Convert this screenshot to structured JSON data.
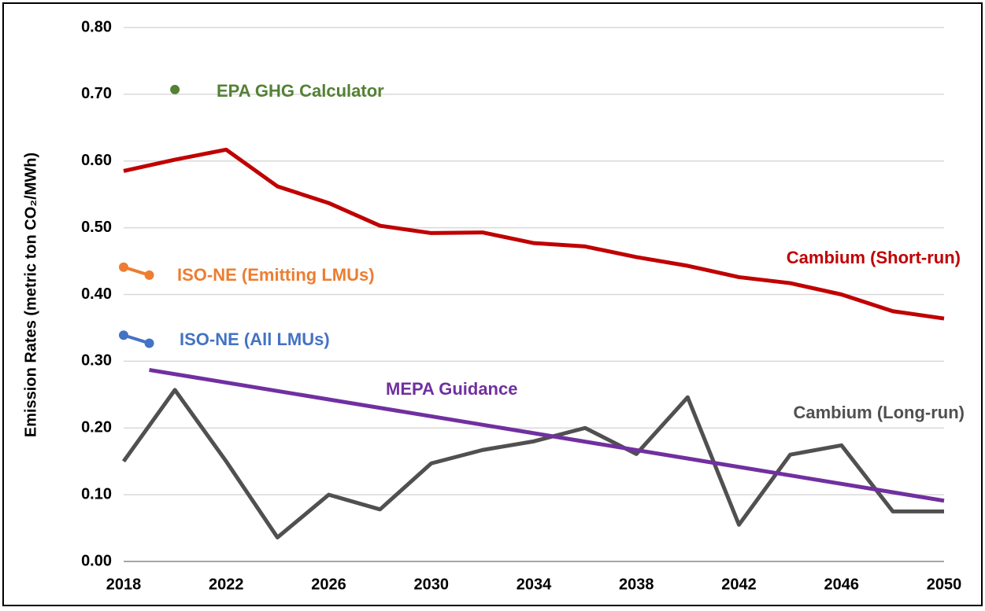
{
  "chart_data": {
    "type": "line",
    "ylabel": "Emission Rates (metric ton CO₂/MWh)",
    "xlim": [
      2018,
      2050
    ],
    "xticks": [
      2018,
      2022,
      2026,
      2030,
      2034,
      2038,
      2042,
      2046,
      2050
    ],
    "ylim": [
      0,
      0.8
    ],
    "yticks": [
      {
        "value": 0,
        "label": "0.00"
      },
      {
        "value": 0.1,
        "label": "0.10"
      },
      {
        "value": 0.2,
        "label": "0.20"
      },
      {
        "value": 0.3,
        "label": "0.30"
      },
      {
        "value": 0.4,
        "label": "0.40"
      },
      {
        "value": 0.5,
        "label": "0.50"
      },
      {
        "value": 0.6,
        "label": "0.60"
      },
      {
        "value": 0.7,
        "label": "0.70"
      },
      {
        "value": 0.8,
        "label": "0.80"
      }
    ],
    "grid": true,
    "series": [
      {
        "name": "Cambium (Short-run)",
        "color": "#c00000",
        "markers": false,
        "x": [
          2018,
          2020,
          2022,
          2024,
          2026,
          2028,
          2030,
          2032,
          2034,
          2036,
          2038,
          2040,
          2042,
          2044,
          2046,
          2048,
          2050
        ],
        "values": [
          0.585,
          0.602,
          0.617,
          0.562,
          0.537,
          0.503,
          0.492,
          0.493,
          0.477,
          0.472,
          0.456,
          0.443,
          0.426,
          0.417,
          0.4,
          0.375,
          0.364
        ]
      },
      {
        "name": "Cambium (Long-run)",
        "color": "#505050",
        "markers": false,
        "x": [
          2018,
          2020,
          2022,
          2024,
          2026,
          2028,
          2030,
          2032,
          2034,
          2036,
          2038,
          2040,
          2042,
          2044,
          2046,
          2048,
          2050
        ],
        "values": [
          0.15,
          0.257,
          0.15,
          0.036,
          0.1,
          0.078,
          0.147,
          0.167,
          0.18,
          0.2,
          0.161,
          0.246,
          0.055,
          0.16,
          0.174,
          0.075,
          0.075
        ]
      },
      {
        "name": "MEPA Guidance",
        "color": "#7030a0",
        "markers": false,
        "x": [
          2019,
          2050
        ],
        "values": [
          0.287,
          0.091
        ]
      },
      {
        "name": "ISO-NE (Emitting LMUs)",
        "color": "#ed7d31",
        "markers": true,
        "x": [
          2018,
          2019
        ],
        "values": [
          0.441,
          0.429
        ]
      },
      {
        "name": "ISO-NE (All LMUs)",
        "color": "#4472c4",
        "markers": true,
        "x": [
          2018,
          2019
        ],
        "values": [
          0.339,
          0.327
        ]
      },
      {
        "name": "EPA GHG Calculator",
        "color": "#548235",
        "markers": true,
        "x": [
          2020
        ],
        "values": [
          0.707
        ]
      }
    ]
  }
}
